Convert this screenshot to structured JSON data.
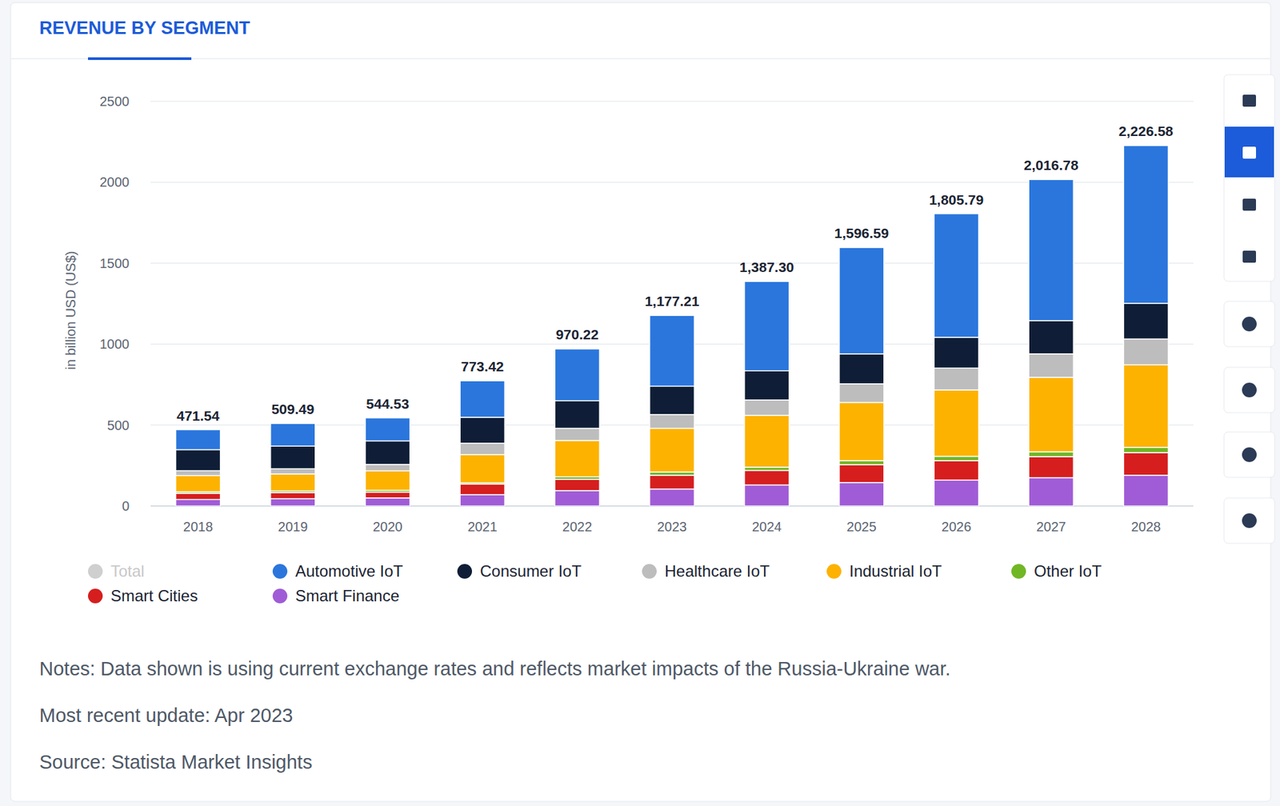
{
  "chart_data": {
    "type": "bar",
    "title": "REVENUE BY SEGMENT",
    "y_label": "in billion USD (US$)",
    "stacked": true,
    "grid": true,
    "legend": "bottom",
    "categories": [
      "2018",
      "2019",
      "2020",
      "2021",
      "2022",
      "2023",
      "2024",
      "2025",
      "2026",
      "2027",
      "2028"
    ],
    "ylim": [
      0,
      2500
    ],
    "yticks": [
      0,
      500,
      1000,
      1500,
      2000,
      2500
    ],
    "series": [
      {
        "name": "Automotive IoT",
        "color": "#2a76dd",
        "values": [
          123.54,
          139.49,
          142.53,
          225.42,
          320.22,
          437.21,
          552.3,
          656.59,
          763.79,
          871.78,
          974.58
        ]
      },
      {
        "name": "Consumer IoT",
        "color": "#0f1e36",
        "values": [
          130,
          140,
          145,
          160,
          170,
          175,
          180,
          185,
          190,
          205,
          220
        ]
      },
      {
        "name": "Healthcare IoT",
        "color": "#bdbdbd",
        "values": [
          30,
          32,
          40,
          70,
          75,
          85,
          95,
          115,
          135,
          145,
          160
        ]
      },
      {
        "name": "Industrial IoT",
        "color": "#fdb200",
        "values": [
          100,
          105,
          120,
          175,
          225,
          270,
          320,
          360,
          410,
          460,
          510
        ]
      },
      {
        "name": "Other IoT",
        "color": "#71b725",
        "values": [
          10,
          10,
          12,
          8,
          15,
          20,
          20,
          25,
          27,
          30,
          32
        ]
      },
      {
        "name": "Smart Cities",
        "color": "#d61e1e",
        "values": [
          38,
          38,
          35,
          65,
          70,
          85,
          90,
          110,
          120,
          130,
          140
        ]
      },
      {
        "name": "Smart Finance",
        "color": "#a05cd6",
        "values": [
          40,
          45,
          50,
          70,
          95,
          105,
          130,
          145,
          160,
          175,
          190
        ]
      }
    ],
    "totals": {
      "name": "Total",
      "color": "#cfcfcf",
      "values": [
        471.54,
        509.49,
        544.53,
        773.42,
        970.22,
        1177.21,
        1387.3,
        1596.59,
        1805.79,
        2016.78,
        2226.58
      ],
      "value_labels": [
        "471.54",
        "509.49",
        "544.53",
        "773.42",
        "970.22",
        "1,177.21",
        "1,387.30",
        "1,596.59",
        "1,805.79",
        "2,016.78",
        "2,226.58"
      ]
    },
    "notes": [
      "Notes: Data shown is using current exchange rates and reflects market impacts of the Russia-Ukraine war.",
      "Most recent update: Apr 2023",
      "Source: Statista Market Insights"
    ]
  }
}
